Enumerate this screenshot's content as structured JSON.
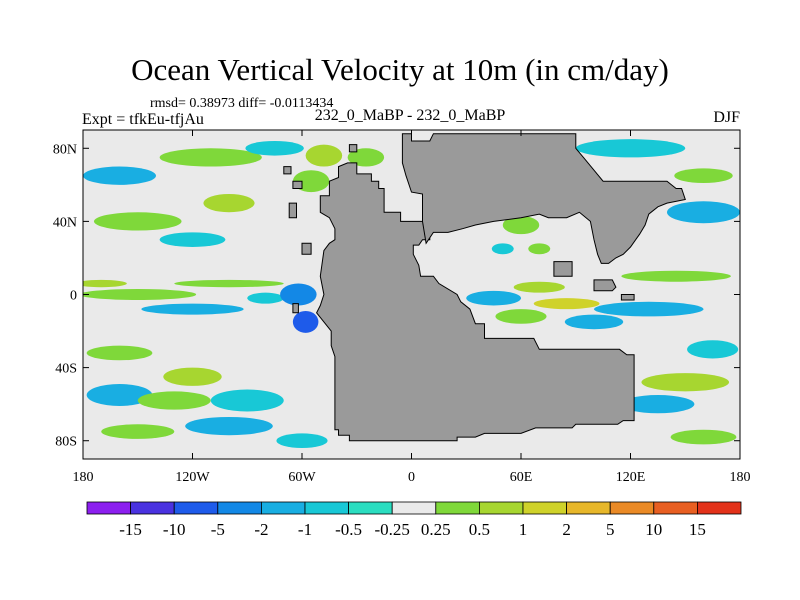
{
  "chart_data": {
    "type": "heatmap",
    "title": "Ocean Vertical Velocity at 10m (in cm/day)",
    "stats": "rmsd= 0.38973 diff= -0.0113434",
    "left_label": "Expt = tfkEu-tfjAu",
    "center_label": "232_0_MaBP - 232_0_MaBP",
    "right_label": "DJF",
    "xlim": [
      -180,
      180
    ],
    "ylim": [
      -90,
      90
    ],
    "x_ticks": [
      {
        "value": -180,
        "label": "180"
      },
      {
        "value": -120,
        "label": "120W"
      },
      {
        "value": -60,
        "label": "60W"
      },
      {
        "value": 0,
        "label": "0"
      },
      {
        "value": 60,
        "label": "60E"
      },
      {
        "value": 120,
        "label": "120E"
      },
      {
        "value": 180,
        "label": "180"
      }
    ],
    "y_ticks": [
      {
        "value": 80,
        "label": "80N"
      },
      {
        "value": 40,
        "label": "40N"
      },
      {
        "value": 0,
        "label": "0"
      },
      {
        "value": -40,
        "label": "40S"
      },
      {
        "value": -80,
        "label": "80S"
      }
    ],
    "colorbar": {
      "colors": [
        "#8c1fef",
        "#4a32e0",
        "#1e5bea",
        "#1388e6",
        "#19aee2",
        "#18c8d6",
        "#2bddc0",
        "#eaeaea",
        "#7fd83a",
        "#a7d630",
        "#cfd22a",
        "#e7b72a",
        "#ea8a26",
        "#e85f22",
        "#e3321a"
      ],
      "labels": [
        "-15",
        "-10",
        "-5",
        "-2",
        "-1",
        "-0.5",
        "-0.25",
        "0.25",
        "0.5",
        "1",
        "2",
        "5",
        "10",
        "15"
      ]
    },
    "colors": {
      "land": "#9a9a9a",
      "background": "#eaeaea",
      "coast": "#000000"
    },
    "land_mask": [
      {
        "name": "supercontinent-west",
        "poly": [
          [
            -42,
            -74
          ],
          [
            -40,
            -74
          ],
          [
            -40,
            -77
          ],
          [
            -34,
            -77
          ],
          [
            -34,
            -80
          ],
          [
            25,
            -80
          ],
          [
            25,
            -78
          ],
          [
            35,
            -78
          ],
          [
            40,
            -76
          ],
          [
            60,
            -76
          ],
          [
            68,
            -73
          ],
          [
            88,
            -73
          ],
          [
            90,
            -71
          ],
          [
            113,
            -71
          ],
          [
            116,
            -69
          ],
          [
            122,
            -69
          ],
          [
            122,
            -33
          ],
          [
            118,
            -33
          ],
          [
            114,
            -30
          ],
          [
            70,
            -30
          ],
          [
            67,
            -24
          ],
          [
            40,
            -24
          ],
          [
            40,
            -16
          ],
          [
            35,
            -16
          ],
          [
            32,
            -8
          ],
          [
            27,
            -4
          ],
          [
            25,
            0
          ],
          [
            15,
            6
          ],
          [
            12,
            10
          ],
          [
            5,
            10
          ],
          [
            4,
            16
          ],
          [
            1,
            22
          ],
          [
            1,
            27
          ],
          [
            4,
            27
          ],
          [
            6,
            30
          ],
          [
            10,
            30
          ],
          [
            10,
            40
          ],
          [
            -6,
            40
          ],
          [
            -6,
            45
          ],
          [
            -15,
            45
          ],
          [
            -15,
            58
          ],
          [
            -18,
            58
          ],
          [
            -18,
            62
          ],
          [
            -22,
            62
          ],
          [
            -22,
            66
          ],
          [
            -30,
            66
          ],
          [
            -30,
            72
          ],
          [
            -35,
            72
          ],
          [
            -40,
            70
          ],
          [
            -40,
            64
          ],
          [
            -45,
            62
          ],
          [
            -45,
            54
          ],
          [
            -50,
            54
          ],
          [
            -50,
            45
          ],
          [
            -45,
            42
          ],
          [
            -42,
            36
          ],
          [
            -42,
            30
          ],
          [
            -45,
            28
          ],
          [
            -48,
            24
          ],
          [
            -50,
            10
          ],
          [
            -48,
            0
          ],
          [
            -50,
            -6
          ],
          [
            -52,
            -10
          ],
          [
            -48,
            -15
          ],
          [
            -44,
            -20
          ],
          [
            -44,
            -28
          ],
          [
            -42,
            -34
          ]
        ]
      },
      {
        "name": "north-landmass",
        "poly": [
          [
            -5,
            80
          ],
          [
            -5,
            88
          ],
          [
            0,
            88
          ],
          [
            0,
            84
          ],
          [
            10,
            84
          ],
          [
            12,
            88
          ],
          [
            90,
            88
          ],
          [
            90,
            80
          ],
          [
            95,
            74
          ],
          [
            100,
            68
          ],
          [
            105,
            62
          ],
          [
            140,
            62
          ],
          [
            145,
            58
          ],
          [
            148,
            58
          ],
          [
            150,
            52
          ],
          [
            140,
            50
          ],
          [
            135,
            48
          ],
          [
            130,
            44
          ],
          [
            128,
            38
          ],
          [
            125,
            33
          ],
          [
            120,
            26
          ],
          [
            116,
            22
          ],
          [
            112,
            20
          ],
          [
            108,
            17
          ],
          [
            104,
            17
          ],
          [
            102,
            22
          ],
          [
            100,
            30
          ],
          [
            98,
            40
          ],
          [
            92,
            45
          ],
          [
            85,
            42
          ],
          [
            75,
            42
          ],
          [
            70,
            44
          ],
          [
            60,
            42
          ],
          [
            45,
            40
          ],
          [
            35,
            38
          ],
          [
            28,
            36
          ],
          [
            20,
            34
          ],
          [
            12,
            34
          ],
          [
            8,
            28
          ],
          [
            6,
            40
          ],
          [
            6,
            55
          ],
          [
            0,
            56
          ],
          [
            -3,
            65
          ],
          [
            -5,
            72
          ]
        ]
      },
      {
        "name": "island-east-a",
        "poly": [
          [
            100,
            8
          ],
          [
            110,
            8
          ],
          [
            112,
            4
          ],
          [
            110,
            2
          ],
          [
            100,
            2
          ]
        ]
      },
      {
        "name": "island-east-b",
        "poly": [
          [
            115,
            0
          ],
          [
            122,
            0
          ],
          [
            122,
            -3
          ],
          [
            115,
            -3
          ]
        ]
      },
      {
        "name": "island-se-asia",
        "poly": [
          [
            78,
            18
          ],
          [
            88,
            18
          ],
          [
            88,
            10
          ],
          [
            78,
            10
          ]
        ]
      },
      {
        "name": "island-west",
        "poly": [
          [
            -65,
            -5
          ],
          [
            -62,
            -5
          ],
          [
            -62,
            -10
          ],
          [
            -65,
            -10
          ]
        ]
      },
      {
        "name": "island-nw-a",
        "poly": [
          [
            -70,
            70
          ],
          [
            -66,
            70
          ],
          [
            -66,
            66
          ],
          [
            -70,
            66
          ]
        ]
      },
      {
        "name": "island-nw-b",
        "poly": [
          [
            -65,
            62
          ],
          [
            -60,
            62
          ],
          [
            -60,
            58
          ],
          [
            -65,
            58
          ]
        ]
      },
      {
        "name": "island-nw-c",
        "poly": [
          [
            -67,
            50
          ],
          [
            -63,
            50
          ],
          [
            -63,
            42
          ],
          [
            -67,
            42
          ]
        ]
      },
      {
        "name": "island-n-a",
        "poly": [
          [
            -34,
            82
          ],
          [
            -30,
            82
          ],
          [
            -30,
            78
          ],
          [
            -34,
            78
          ]
        ]
      },
      {
        "name": "island-n-b",
        "poly": [
          [
            -60,
            28
          ],
          [
            -55,
            28
          ],
          [
            -55,
            22
          ],
          [
            -60,
            22
          ]
        ]
      }
    ],
    "anomaly_patches": [
      {
        "lon": -150,
        "lat": 0,
        "rx": 32,
        "ry": 3,
        "bin": 8
      },
      {
        "lon": -170,
        "lat": 6,
        "rx": 14,
        "ry": 2,
        "bin": 9
      },
      {
        "lon": -100,
        "lat": 6,
        "rx": 30,
        "ry": 2,
        "bin": 8
      },
      {
        "lon": -120,
        "lat": -8,
        "rx": 28,
        "ry": 3,
        "bin": 4
      },
      {
        "lon": -80,
        "lat": -2,
        "rx": 10,
        "ry": 3,
        "bin": 5
      },
      {
        "lon": -62,
        "lat": 0,
        "rx": 10,
        "ry": 6,
        "bin": 3
      },
      {
        "lon": -58,
        "lat": -15,
        "rx": 7,
        "ry": 6,
        "bin": 2
      },
      {
        "lon": -160,
        "lat": -55,
        "rx": 18,
        "ry": 6,
        "bin": 4
      },
      {
        "lon": -130,
        "lat": -58,
        "rx": 20,
        "ry": 5,
        "bin": 8
      },
      {
        "lon": -120,
        "lat": -45,
        "rx": 16,
        "ry": 5,
        "bin": 9
      },
      {
        "lon": -90,
        "lat": -58,
        "rx": 20,
        "ry": 6,
        "bin": 5
      },
      {
        "lon": -160,
        "lat": -32,
        "rx": 18,
        "ry": 4,
        "bin": 8
      },
      {
        "lon": -100,
        "lat": -72,
        "rx": 24,
        "ry": 5,
        "bin": 4
      },
      {
        "lon": -150,
        "lat": -75,
        "rx": 20,
        "ry": 4,
        "bin": 8
      },
      {
        "lon": -60,
        "lat": -80,
        "rx": 14,
        "ry": 4,
        "bin": 5
      },
      {
        "lon": -150,
        "lat": 40,
        "rx": 24,
        "ry": 5,
        "bin": 8
      },
      {
        "lon": -120,
        "lat": 30,
        "rx": 18,
        "ry": 4,
        "bin": 5
      },
      {
        "lon": -100,
        "lat": 50,
        "rx": 14,
        "ry": 5,
        "bin": 9
      },
      {
        "lon": -160,
        "lat": 65,
        "rx": 20,
        "ry": 5,
        "bin": 4
      },
      {
        "lon": -110,
        "lat": 75,
        "rx": 28,
        "ry": 5,
        "bin": 8
      },
      {
        "lon": -75,
        "lat": 80,
        "rx": 16,
        "ry": 4,
        "bin": 5
      },
      {
        "lon": -55,
        "lat": 62,
        "rx": 10,
        "ry": 6,
        "bin": 8
      },
      {
        "lon": -48,
        "lat": 76,
        "rx": 10,
        "ry": 6,
        "bin": 9
      },
      {
        "lon": -25,
        "lat": 75,
        "rx": 10,
        "ry": 5,
        "bin": 8
      },
      {
        "lon": 145,
        "lat": 10,
        "rx": 30,
        "ry": 3,
        "bin": 8
      },
      {
        "lon": 130,
        "lat": -8,
        "rx": 30,
        "ry": 4,
        "bin": 4
      },
      {
        "lon": 165,
        "lat": -30,
        "rx": 14,
        "ry": 5,
        "bin": 5
      },
      {
        "lon": 150,
        "lat": -48,
        "rx": 24,
        "ry": 5,
        "bin": 9
      },
      {
        "lon": 135,
        "lat": -60,
        "rx": 20,
        "ry": 5,
        "bin": 4
      },
      {
        "lon": 160,
        "lat": -78,
        "rx": 18,
        "ry": 4,
        "bin": 8
      },
      {
        "lon": 160,
        "lat": 45,
        "rx": 20,
        "ry": 6,
        "bin": 4
      },
      {
        "lon": 160,
        "lat": 65,
        "rx": 16,
        "ry": 4,
        "bin": 8
      },
      {
        "lon": 120,
        "lat": 80,
        "rx": 30,
        "ry": 5,
        "bin": 5
      },
      {
        "lon": 60,
        "lat": 38,
        "rx": 10,
        "ry": 5,
        "bin": 8
      },
      {
        "lon": 45,
        "lat": -2,
        "rx": 15,
        "ry": 4,
        "bin": 4
      },
      {
        "lon": 85,
        "lat": -5,
        "rx": 18,
        "ry": 3,
        "bin": 10
      },
      {
        "lon": 70,
        "lat": 4,
        "rx": 14,
        "ry": 3,
        "bin": 9
      },
      {
        "lon": 60,
        "lat": -12,
        "rx": 14,
        "ry": 4,
        "bin": 8
      },
      {
        "lon": 100,
        "lat": -15,
        "rx": 16,
        "ry": 4,
        "bin": 4
      },
      {
        "lon": 50,
        "lat": 25,
        "rx": 6,
        "ry": 3,
        "bin": 5
      },
      {
        "lon": 70,
        "lat": 25,
        "rx": 6,
        "ry": 3,
        "bin": 8
      }
    ]
  }
}
